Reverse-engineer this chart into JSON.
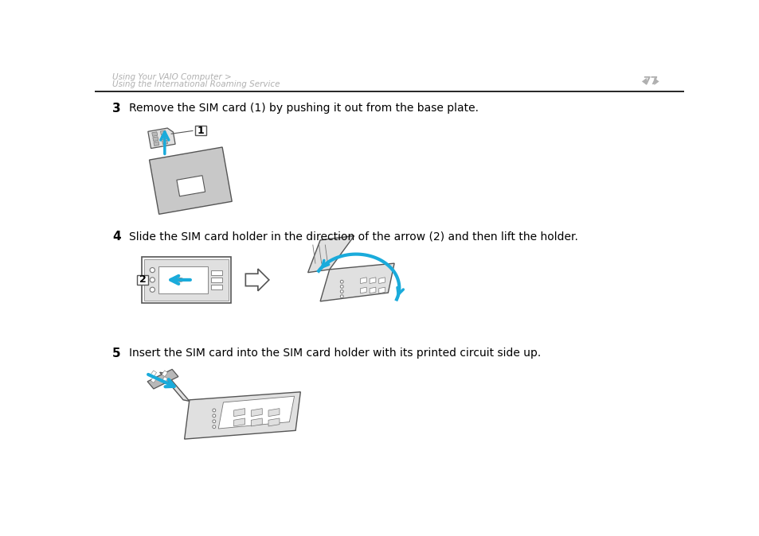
{
  "bg_color": "#ffffff",
  "header_text_line1": "Using Your VAIO Computer >",
  "header_text_line2": "Using the International Roaming Service",
  "header_text_color": "#b0b0b0",
  "page_number": "77",
  "page_number_color": "#b0b0b0",
  "separator_color": "#000000",
  "step3_number": "3",
  "step3_text": "Remove the SIM card (1) by pushing it out from the base plate.",
  "step4_number": "4",
  "step4_text": "Slide the SIM card holder in the direction of the arrow (2) and then lift the holder.",
  "step5_number": "5",
  "step5_text": "Insert the SIM card into the SIM card holder with its printed circuit side up.",
  "text_color": "#000000",
  "cyan_color": "#1aabdb",
  "gray_fill": "#c8c8c8",
  "light_gray": "#e0e0e0",
  "mid_gray": "#b8b8b8",
  "outline_color": "#555555",
  "thin_outline": "#777777"
}
